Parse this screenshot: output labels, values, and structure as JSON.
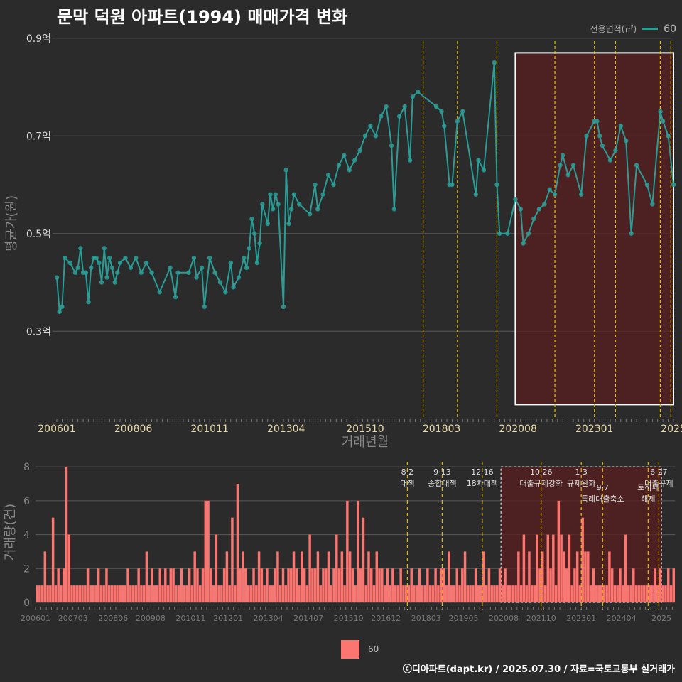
{
  "title": "문막 덕원 아파트(1994) 매매가격 변화",
  "footer": "ⓒ디아파트(dapt.kr) / 2025.07.30 / 자료=국토교통부 실거래가",
  "colors": {
    "line": "#2a9d96",
    "bar": "#fb7571",
    "policy_line": "#e6b800",
    "highlight": "#5a1f1f",
    "background": "#2b2b2b"
  },
  "legend": {
    "title": "전용면적(㎡)",
    "items": [
      "60"
    ]
  },
  "chart_data": [
    {
      "type": "line",
      "title": "문막 덕원 아파트(1994) 매매가격 변화",
      "xlabel": "거래년월",
      "ylabel": "평균가(원)",
      "x_ticks": [
        "200601",
        "200806",
        "201011",
        "201304",
        "201510",
        "201803",
        "202008",
        "202301",
        "2025"
      ],
      "y_ticks": [
        "0.3억",
        "0.5억",
        "0.7억",
        "0.9억"
      ],
      "y_tick_values": [
        0.3,
        0.5,
        0.7,
        0.9
      ],
      "xlim": [
        "2006-01",
        "2025-07"
      ],
      "ylim": [
        0.12,
        0.92
      ],
      "highlight": {
        "from": "2020-07",
        "to": "2025-07",
        "ymin": 0.15,
        "ymax": 0.87
      },
      "policy_dates": [
        "2017-08",
        "2018-09",
        "2019-12",
        "2021-10",
        "2023-01",
        "2023-09",
        "2025-02",
        "2025-06"
      ],
      "series": [
        {
          "name": "60",
          "points": [
            [
              "2006-01",
              0.41
            ],
            [
              "2006-02",
              0.34
            ],
            [
              "2006-03",
              0.35
            ],
            [
              "2006-04",
              0.45
            ],
            [
              "2006-06",
              0.44
            ],
            [
              "2006-08",
              0.42
            ],
            [
              "2006-09",
              0.43
            ],
            [
              "2006-10",
              0.47
            ],
            [
              "2006-11",
              0.42
            ],
            [
              "2006-12",
              0.42
            ],
            [
              "2007-01",
              0.36
            ],
            [
              "2007-02",
              0.43
            ],
            [
              "2007-03",
              0.45
            ],
            [
              "2007-04",
              0.45
            ],
            [
              "2007-05",
              0.44
            ],
            [
              "2007-06",
              0.4
            ],
            [
              "2007-07",
              0.47
            ],
            [
              "2007-08",
              0.41
            ],
            [
              "2007-09",
              0.45
            ],
            [
              "2007-10",
              0.43
            ],
            [
              "2007-11",
              0.4
            ],
            [
              "2007-12",
              0.42
            ],
            [
              "2008-01",
              0.44
            ],
            [
              "2008-03",
              0.45
            ],
            [
              "2008-05",
              0.43
            ],
            [
              "2008-07",
              0.45
            ],
            [
              "2008-09",
              0.42
            ],
            [
              "2008-11",
              0.44
            ],
            [
              "2009-01",
              0.42
            ],
            [
              "2009-04",
              0.38
            ],
            [
              "2009-08",
              0.43
            ],
            [
              "2009-10",
              0.37
            ],
            [
              "2009-11",
              0.42
            ],
            [
              "2010-03",
              0.42
            ],
            [
              "2010-05",
              0.45
            ],
            [
              "2010-06",
              0.41
            ],
            [
              "2010-08",
              0.43
            ],
            [
              "2010-09",
              0.35
            ],
            [
              "2010-11",
              0.45
            ],
            [
              "2011-01",
              0.42
            ],
            [
              "2011-03",
              0.4
            ],
            [
              "2011-05",
              0.38
            ],
            [
              "2011-07",
              0.44
            ],
            [
              "2011-08",
              0.39
            ],
            [
              "2011-10",
              0.41
            ],
            [
              "2011-12",
              0.45
            ],
            [
              "2012-01",
              0.43
            ],
            [
              "2012-02",
              0.47
            ],
            [
              "2012-03",
              0.53
            ],
            [
              "2012-04",
              0.5
            ],
            [
              "2012-05",
              0.44
            ],
            [
              "2012-06",
              0.48
            ],
            [
              "2012-07",
              0.56
            ],
            [
              "2012-09",
              0.52
            ],
            [
              "2012-10",
              0.58
            ],
            [
              "2012-11",
              0.55
            ],
            [
              "2012-12",
              0.58
            ],
            [
              "2013-01",
              0.56
            ],
            [
              "2013-03",
              0.35
            ],
            [
              "2013-04",
              0.63
            ],
            [
              "2013-05",
              0.52
            ],
            [
              "2013-06",
              0.55
            ],
            [
              "2013-07",
              0.58
            ],
            [
              "2013-09",
              0.56
            ],
            [
              "2014-01",
              0.54
            ],
            [
              "2014-03",
              0.6
            ],
            [
              "2014-04",
              0.55
            ],
            [
              "2014-06",
              0.58
            ],
            [
              "2014-08",
              0.62
            ],
            [
              "2014-10",
              0.6
            ],
            [
              "2014-12",
              0.64
            ],
            [
              "2015-02",
              0.66
            ],
            [
              "2015-04",
              0.63
            ],
            [
              "2015-06",
              0.65
            ],
            [
              "2015-08",
              0.67
            ],
            [
              "2015-10",
              0.7
            ],
            [
              "2015-12",
              0.72
            ],
            [
              "2016-02",
              0.7
            ],
            [
              "2016-04",
              0.74
            ],
            [
              "2016-06",
              0.76
            ],
            [
              "2016-08",
              0.68
            ],
            [
              "2016-09",
              0.55
            ],
            [
              "2016-11",
              0.74
            ],
            [
              "2017-01",
              0.76
            ],
            [
              "2017-03",
              0.65
            ],
            [
              "2017-04",
              0.78
            ],
            [
              "2017-06",
              0.79
            ],
            [
              "2018-01",
              0.76
            ],
            [
              "2018-03",
              0.75
            ],
            [
              "2018-04",
              0.72
            ],
            [
              "2018-06",
              0.6
            ],
            [
              "2018-07",
              0.6
            ],
            [
              "2018-09",
              0.73
            ],
            [
              "2018-11",
              0.75
            ],
            [
              "2019-04",
              0.58
            ],
            [
              "2019-05",
              0.65
            ],
            [
              "2019-07",
              0.63
            ],
            [
              "2019-11",
              0.85
            ],
            [
              "2019-12",
              0.6
            ],
            [
              "2020-01",
              0.5
            ],
            [
              "2020-04",
              0.5
            ],
            [
              "2020-07",
              0.57
            ],
            [
              "2020-09",
              0.55
            ],
            [
              "2020-10",
              0.48
            ],
            [
              "2020-12",
              0.5
            ],
            [
              "2021-02",
              0.53
            ],
            [
              "2021-04",
              0.55
            ],
            [
              "2021-06",
              0.56
            ],
            [
              "2021-08",
              0.59
            ],
            [
              "2021-10",
              0.58
            ],
            [
              "2021-12",
              0.64
            ],
            [
              "2022-01",
              0.66
            ],
            [
              "2022-03",
              0.62
            ],
            [
              "2022-05",
              0.64
            ],
            [
              "2022-08",
              0.58
            ],
            [
              "2022-10",
              0.7
            ],
            [
              "2023-01",
              0.73
            ],
            [
              "2023-02",
              0.73
            ],
            [
              "2023-03",
              0.7
            ],
            [
              "2023-04",
              0.68
            ],
            [
              "2023-07",
              0.65
            ],
            [
              "2023-09",
              0.67
            ],
            [
              "2023-11",
              0.72
            ],
            [
              "2024-01",
              0.69
            ],
            [
              "2024-03",
              0.5
            ],
            [
              "2024-05",
              0.64
            ],
            [
              "2024-09",
              0.6
            ],
            [
              "2024-11",
              0.56
            ],
            [
              "2025-02",
              0.75
            ],
            [
              "2025-03",
              0.73
            ],
            [
              "2025-05",
              0.7
            ],
            [
              "2025-07",
              0.6
            ]
          ]
        }
      ]
    },
    {
      "type": "bar",
      "xlabel": "",
      "ylabel": "거래량(건)",
      "x_ticks": [
        "200601",
        "200703",
        "200806",
        "200908",
        "201011",
        "201201",
        "201304",
        "201407",
        "201510",
        "201612",
        "201803",
        "201905",
        "202008",
        "202110",
        "202301",
        "202404",
        "2025"
      ],
      "y_ticks": [
        "0",
        "2",
        "4",
        "6",
        "8"
      ],
      "y_tick_values": [
        0,
        2,
        4,
        6,
        8
      ],
      "ylim": [
        0,
        8.3
      ],
      "policy_labels": [
        {
          "date": "2017-08",
          "label": "8·2 대책"
        },
        {
          "date": "2018-09",
          "label": "9·13 종합대책"
        },
        {
          "date": "2019-12",
          "label": "12·16 18차대책"
        },
        {
          "date": "2021-10",
          "label": "10·26 대출규제강화"
        },
        {
          "date": "2023-01",
          "label": "1·3 규제완화"
        },
        {
          "date": "2023-09",
          "label": "9·7 특례대출축소"
        },
        {
          "date": "2025-02",
          "label": "토허제 해제"
        },
        {
          "date": "2025-06",
          "label": "6·27 대출규제"
        }
      ],
      "series": [
        {
          "name": "60",
          "monthly_counts": [
            1,
            1,
            1,
            3,
            1,
            1,
            5,
            1,
            2,
            1,
            2,
            8,
            4,
            1,
            1,
            1,
            1,
            1,
            1,
            2,
            1,
            1,
            1,
            2,
            1,
            1,
            2,
            1,
            1,
            1,
            1,
            1,
            1,
            1,
            2,
            1,
            1,
            1,
            2,
            1,
            1,
            3,
            1,
            2,
            1,
            1,
            2,
            1,
            2,
            1,
            2,
            2,
            1,
            1,
            2,
            1,
            1,
            2,
            1,
            3,
            2,
            1,
            2,
            6,
            6,
            2,
            1,
            4,
            1,
            1,
            2,
            3,
            1,
            5,
            1,
            7,
            2,
            3,
            2,
            1,
            1,
            2,
            1,
            3,
            2,
            1,
            2,
            1,
            1,
            2,
            3,
            1,
            2,
            1,
            2,
            2,
            3,
            2,
            1,
            3,
            2,
            1,
            4,
            2,
            2,
            3,
            1,
            2,
            2,
            3,
            1,
            2,
            4,
            2,
            3,
            1,
            6,
            3,
            2,
            1,
            6,
            2,
            5,
            1,
            3,
            2,
            1,
            3,
            2,
            2,
            1,
            2,
            1,
            2,
            1,
            1,
            2,
            1,
            1,
            1,
            2,
            1,
            1,
            2,
            1,
            1,
            2,
            1,
            1,
            2,
            1,
            2,
            2,
            1,
            3,
            1,
            1,
            2,
            1,
            2,
            3,
            1,
            1,
            1,
            2,
            1,
            1,
            3,
            1,
            2,
            1,
            1,
            1,
            2,
            1,
            2,
            1,
            1,
            1,
            1,
            3,
            1,
            4,
            1,
            3,
            1,
            1,
            4,
            2,
            3,
            1,
            4,
            2,
            4,
            1,
            6,
            4,
            3,
            2,
            4,
            1,
            2,
            3,
            1,
            5,
            3,
            3,
            1,
            2,
            1,
            1,
            1,
            1,
            1,
            3,
            2,
            1,
            1,
            2,
            1,
            4,
            1,
            1,
            2,
            1,
            1,
            1,
            1,
            1,
            1,
            1,
            2,
            1,
            2,
            1,
            1,
            2,
            1,
            2
          ]
        }
      ]
    }
  ]
}
